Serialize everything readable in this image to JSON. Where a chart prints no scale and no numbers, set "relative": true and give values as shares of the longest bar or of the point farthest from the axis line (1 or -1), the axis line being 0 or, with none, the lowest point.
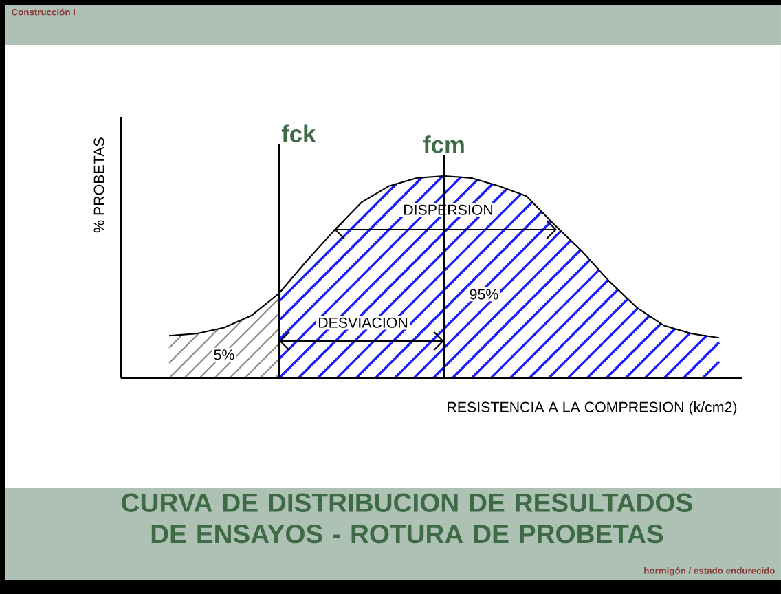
{
  "chart_data": {
    "type": "line",
    "relative": true,
    "title": "CURVA DE DISTRIBUCION DE RESULTADOS DE ENSAYOS -  ROTURA DE PROBETAS",
    "xlabel": "RESISTENCIA A LA COMPRESION (k/cm2)",
    "ylabel": "% PROBETAS",
    "categories": [
      null,
      null,
      null,
      null,
      null,
      null,
      null,
      null,
      null,
      null,
      null,
      null,
      null,
      null,
      null,
      null,
      null,
      null,
      null,
      null,
      null
    ],
    "series": [
      {
        "color": "#000000",
        "values": [
          0.21,
          0.22,
          0.25,
          0.31,
          0.42,
          0.58,
          0.73,
          0.87,
          0.95,
          0.99,
          1,
          0.99,
          0.95,
          0.9,
          0.76,
          0.63,
          0.48,
          0.35,
          0.26,
          0.22,
          0.2
        ]
      }
    ],
    "annotations": [
      "DISPERSION",
      "DESVIACION",
      "95%",
      "5%",
      "Construcción I",
      "hormigón / estado endurecido",
      "fck",
      "fcm"
    ]
  }
}
